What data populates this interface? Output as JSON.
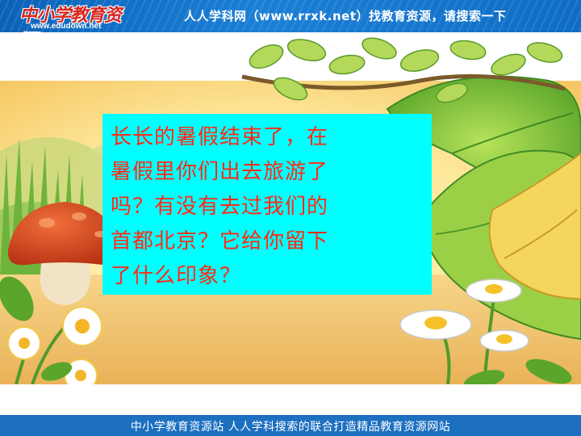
{
  "header": {
    "logo_text": "中小学教育资源",
    "logo_url": "www.edudown.net",
    "banner_text": "人人学科网（www.rrxk.net）找教育资源，请搜索一下"
  },
  "slide": {
    "text_lines": [
      "长长的暑假结束了，在",
      "暑假里你们出去旅游了",
      "吗？有没有去过我们的",
      "首都北京？它给你留下",
      "了什么印象？"
    ]
  },
  "footer": {
    "text": "中小学教育资源站  人人学科搜索的联合打造精品教育资源网站"
  },
  "colors": {
    "header_bg": "#1b7fd6",
    "footer_bg": "#1d6fc0",
    "text_box_bg": "#00ffff",
    "text_color": "#ff2a14"
  },
  "icons": [
    "mushroom-illustration",
    "leaf-illustration",
    "daisy-flower-illustration",
    "grass-illustration"
  ]
}
